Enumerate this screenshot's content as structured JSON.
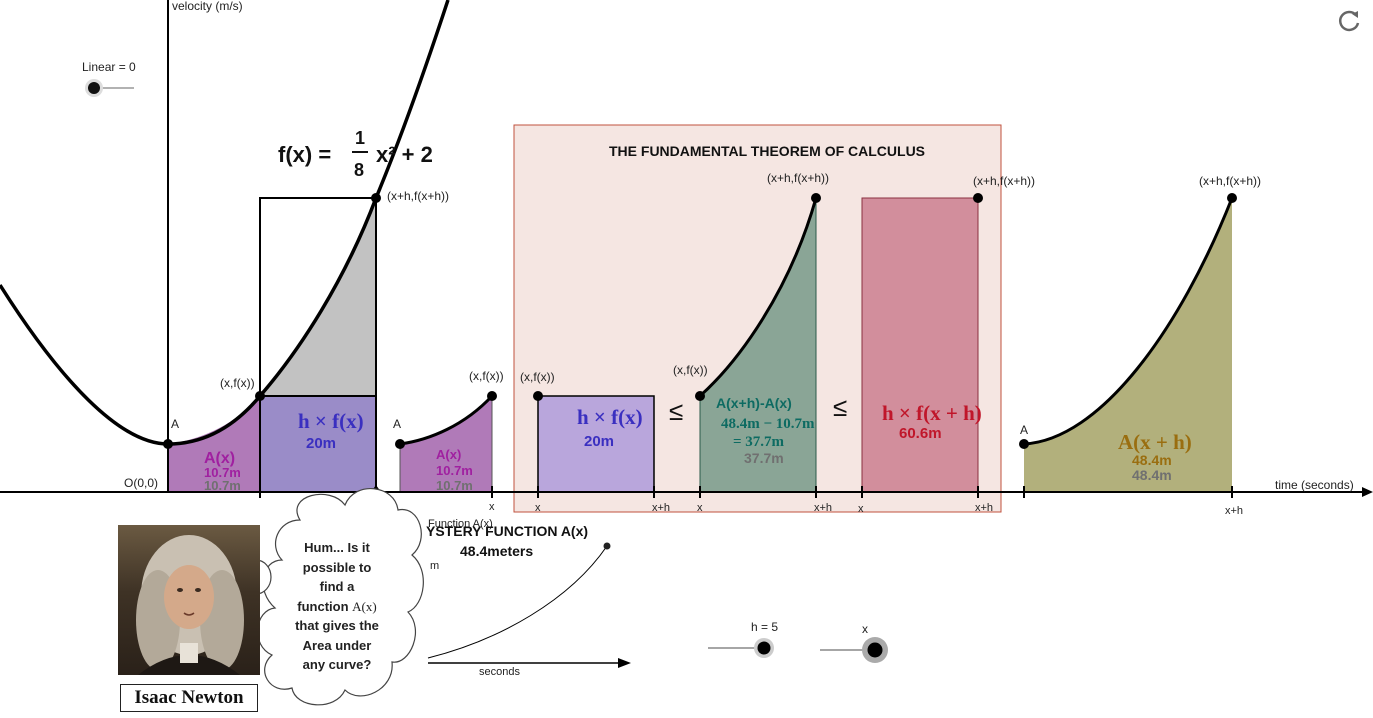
{
  "axes": {
    "y_label": "velocity (m/s)",
    "x_label": "time (seconds)",
    "origin_label": "O(0,0)"
  },
  "linear_slider": {
    "label": "Linear = 0"
  },
  "function_formula": {
    "prefix": "f(x) =",
    "numerator": "1",
    "denominator": "8",
    "tail": "x² + 2"
  },
  "panel": {
    "title": "THE FUNDAMENTAL THEOREM OF CALCULUS"
  },
  "points": {
    "x_fx": "(x,f(x))",
    "xh_fxh": "(x+h,f(x+h))",
    "A": "A",
    "x": "x",
    "x_plus_h": "x+h"
  },
  "area_labels": {
    "Ax": "A(x)",
    "Ax_value": "10.7m",
    "hfx": "h × f(x)",
    "hfx_value": "20m",
    "diff": "A(x+h)-A(x)",
    "diff_expr": "48.4m − 10.7m",
    "diff_result": "= 37.7m",
    "diff_value": "37.7m",
    "hfxh": "h × f(x + h)",
    "hfxh_value": "60.6m",
    "Axh": "A(x + h)",
    "Axh_value": "48.4m",
    "leq": "≤"
  },
  "mystery": {
    "function_label": "Function A(x)",
    "title": "YSTERY FUNCTION A(x)",
    "value": "48.4meters",
    "y_unit": "m",
    "x_unit": "seconds"
  },
  "sliders": {
    "h_label": "h = 5",
    "x_label": "x"
  },
  "thought_bubble": {
    "line1": "Hum... Is it",
    "line2": "possible to",
    "line3": "find a",
    "line4a": "function ",
    "line4b": "A(x)",
    "line5": "that gives the",
    "line6": "Area under",
    "line7": "any curve?"
  },
  "newton": {
    "caption": "Isaac Newton"
  },
  "chart_data": {
    "type": "area",
    "function": "f(x) = (1/8)x^2 + 2",
    "xlabel": "time (seconds)",
    "ylabel": "velocity (m/s)",
    "h": 5,
    "values": {
      "A_x": 10.7,
      "h_times_f_x": 20,
      "A_x_plus_h": 48.4,
      "difference": 37.7,
      "h_times_f_x_plus_h": 60.6
    },
    "units": "m"
  },
  "colors": {
    "purple_area": "#b07ab8",
    "blue_rect": "#9a8cc8",
    "grey_area": "#c2c2c2",
    "teal_area": "#8aa596",
    "red_rect": "#d28e9c",
    "olive_area": "#b2b07c",
    "panel_bg": "#f5e6e2",
    "panel_border": "#c0523e"
  }
}
